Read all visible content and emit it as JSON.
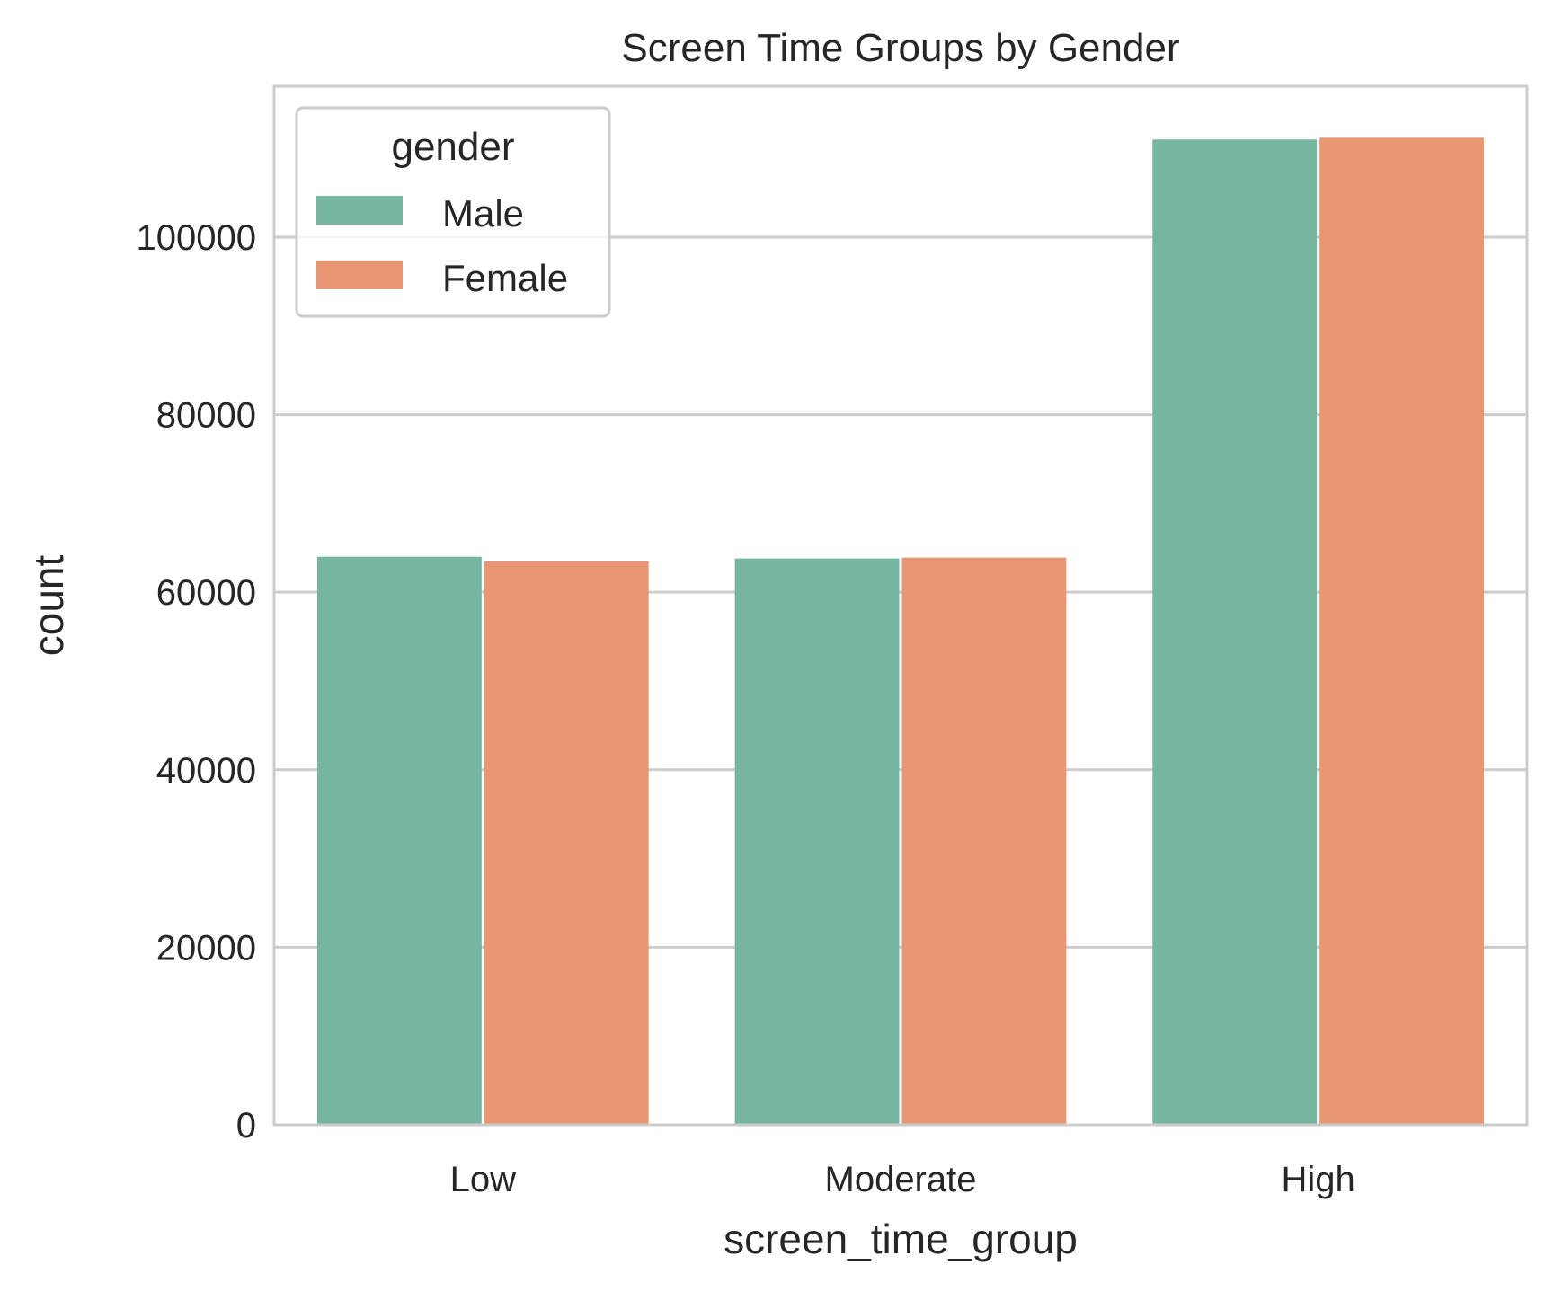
{
  "chart_data": {
    "type": "bar",
    "title": "Screen Time Groups by Gender",
    "xlabel": "screen_time_group",
    "ylabel": "count",
    "categories": [
      "Low",
      "Moderate",
      "High"
    ],
    "series": [
      {
        "name": "Male",
        "values": [
          64000,
          63800,
          111000
        ],
        "color": "#76b5a0"
      },
      {
        "name": "Female",
        "values": [
          63500,
          63900,
          111200
        ],
        "color": "#e99675"
      }
    ],
    "ylim": [
      0,
      117000
    ],
    "yticks": [
      0,
      20000,
      40000,
      60000,
      80000,
      100000
    ],
    "ytick_labels": [
      "0",
      "20000",
      "40000",
      "60000",
      "80000",
      "100000"
    ],
    "grid": true,
    "legend": {
      "title": "gender",
      "placement": "top-left"
    }
  }
}
